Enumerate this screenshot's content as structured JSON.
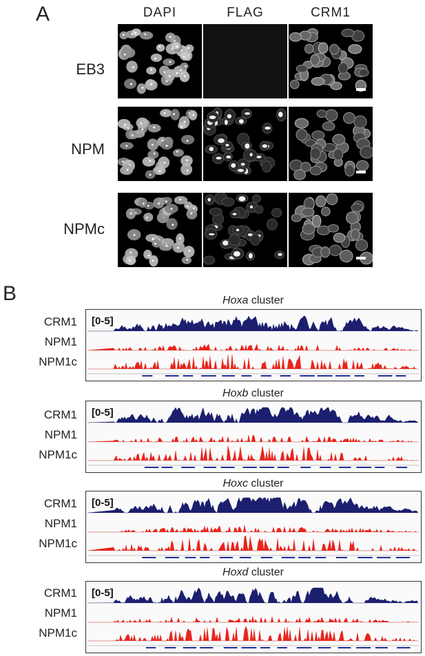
{
  "panel_a": {
    "letter": "A",
    "columns": [
      "DAPI",
      "FLAG",
      "CRM1"
    ],
    "rows": [
      {
        "label": "EB3",
        "flag_brightness": 0.0
      },
      {
        "label": "NPM",
        "flag_brightness": 0.9
      },
      {
        "label": "NPMc",
        "flag_brightness": 0.55
      }
    ]
  },
  "panel_b": {
    "letter": "B",
    "range_label": "[0-5]",
    "colors": {
      "crm1": "#1b1f6e",
      "npm": "#e8251c",
      "gene": "#1e2f9a"
    },
    "clusters": [
      {
        "name": "Hoxa",
        "suffix": " cluster",
        "tracks": [
          "CRM1",
          "NPM1",
          "NPM1c"
        ]
      },
      {
        "name": "Hoxb",
        "suffix": " cluster",
        "tracks": [
          "CRM1",
          "NPM1",
          "NPM1c"
        ]
      },
      {
        "name": "Hoxc",
        "suffix": " cluster",
        "tracks": [
          "CRM1",
          "NPM1",
          "NPM1c"
        ]
      },
      {
        "name": "Hoxd",
        "suffix": " cluster",
        "tracks": [
          "CRM1",
          "NPM1",
          "NPM1c"
        ]
      }
    ]
  }
}
